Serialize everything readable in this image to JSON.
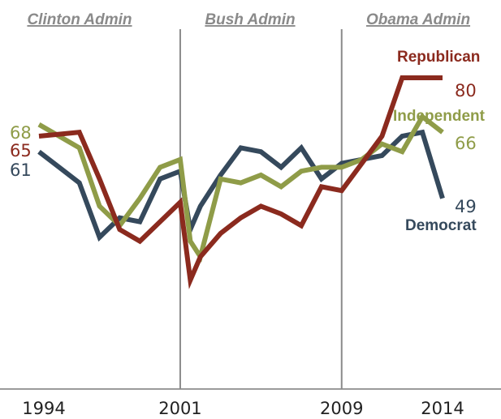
{
  "chart_data": {
    "type": "line",
    "x_ticks": [
      "1994",
      "2001",
      "2009",
      "2014"
    ],
    "x_range": [
      1994,
      2014
    ],
    "ylim": [
      0,
      100
    ],
    "grid": false,
    "dividers": [
      2001,
      2009
    ],
    "admins": [
      "Clinton Admin",
      "Bush Admin",
      "Obama Admin"
    ],
    "series": [
      {
        "name": "Republican",
        "color": "#8b2a1e",
        "end_label": "80",
        "start_label": "65",
        "points": [
          [
            1994,
            65
          ],
          [
            1995,
            65.5
          ],
          [
            1996,
            66
          ],
          [
            1997,
            54
          ],
          [
            1998,
            41
          ],
          [
            1999,
            38
          ],
          [
            2000,
            43
          ],
          [
            2001,
            48
          ],
          [
            2001.5,
            28
          ],
          [
            2002,
            34
          ],
          [
            2003,
            40
          ],
          [
            2004,
            44
          ],
          [
            2005,
            47
          ],
          [
            2006,
            45
          ],
          [
            2007,
            42
          ],
          [
            2008,
            52
          ],
          [
            2009,
            51
          ],
          [
            2010,
            58
          ],
          [
            2011,
            65
          ],
          [
            2012,
            80
          ],
          [
            2013,
            80
          ],
          [
            2014,
            80
          ]
        ]
      },
      {
        "name": "Independent",
        "color": "#8f9c48",
        "end_label": "66",
        "start_label": "68",
        "points": [
          [
            1994,
            68
          ],
          [
            1995,
            65
          ],
          [
            1996,
            62
          ],
          [
            1997,
            47
          ],
          [
            1998,
            42
          ],
          [
            1999,
            49
          ],
          [
            2000,
            57
          ],
          [
            2001,
            59
          ],
          [
            2001.5,
            38
          ],
          [
            2002,
            34
          ],
          [
            2003,
            54
          ],
          [
            2004,
            53
          ],
          [
            2005,
            55
          ],
          [
            2006,
            52
          ],
          [
            2007,
            56
          ],
          [
            2008,
            57
          ],
          [
            2009,
            57
          ],
          [
            2010,
            59
          ],
          [
            2011,
            63
          ],
          [
            2012,
            61
          ],
          [
            2013,
            70
          ],
          [
            2014,
            66
          ]
        ]
      },
      {
        "name": "Democrat",
        "color": "#35495c",
        "end_label": "49",
        "start_label": "61",
        "points": [
          [
            1994,
            61
          ],
          [
            1995,
            57
          ],
          [
            1996,
            53
          ],
          [
            1997,
            39
          ],
          [
            1998,
            44
          ],
          [
            1999,
            43
          ],
          [
            2000,
            54
          ],
          [
            2001,
            56
          ],
          [
            2001.5,
            41
          ],
          [
            2002,
            47
          ],
          [
            2003,
            55
          ],
          [
            2004,
            62
          ],
          [
            2005,
            61
          ],
          [
            2006,
            57
          ],
          [
            2007,
            62
          ],
          [
            2008,
            54
          ],
          [
            2009,
            58
          ],
          [
            2010,
            59
          ],
          [
            2011,
            60
          ],
          [
            2012,
            65
          ],
          [
            2013,
            66
          ],
          [
            2014,
            49
          ]
        ]
      }
    ]
  }
}
